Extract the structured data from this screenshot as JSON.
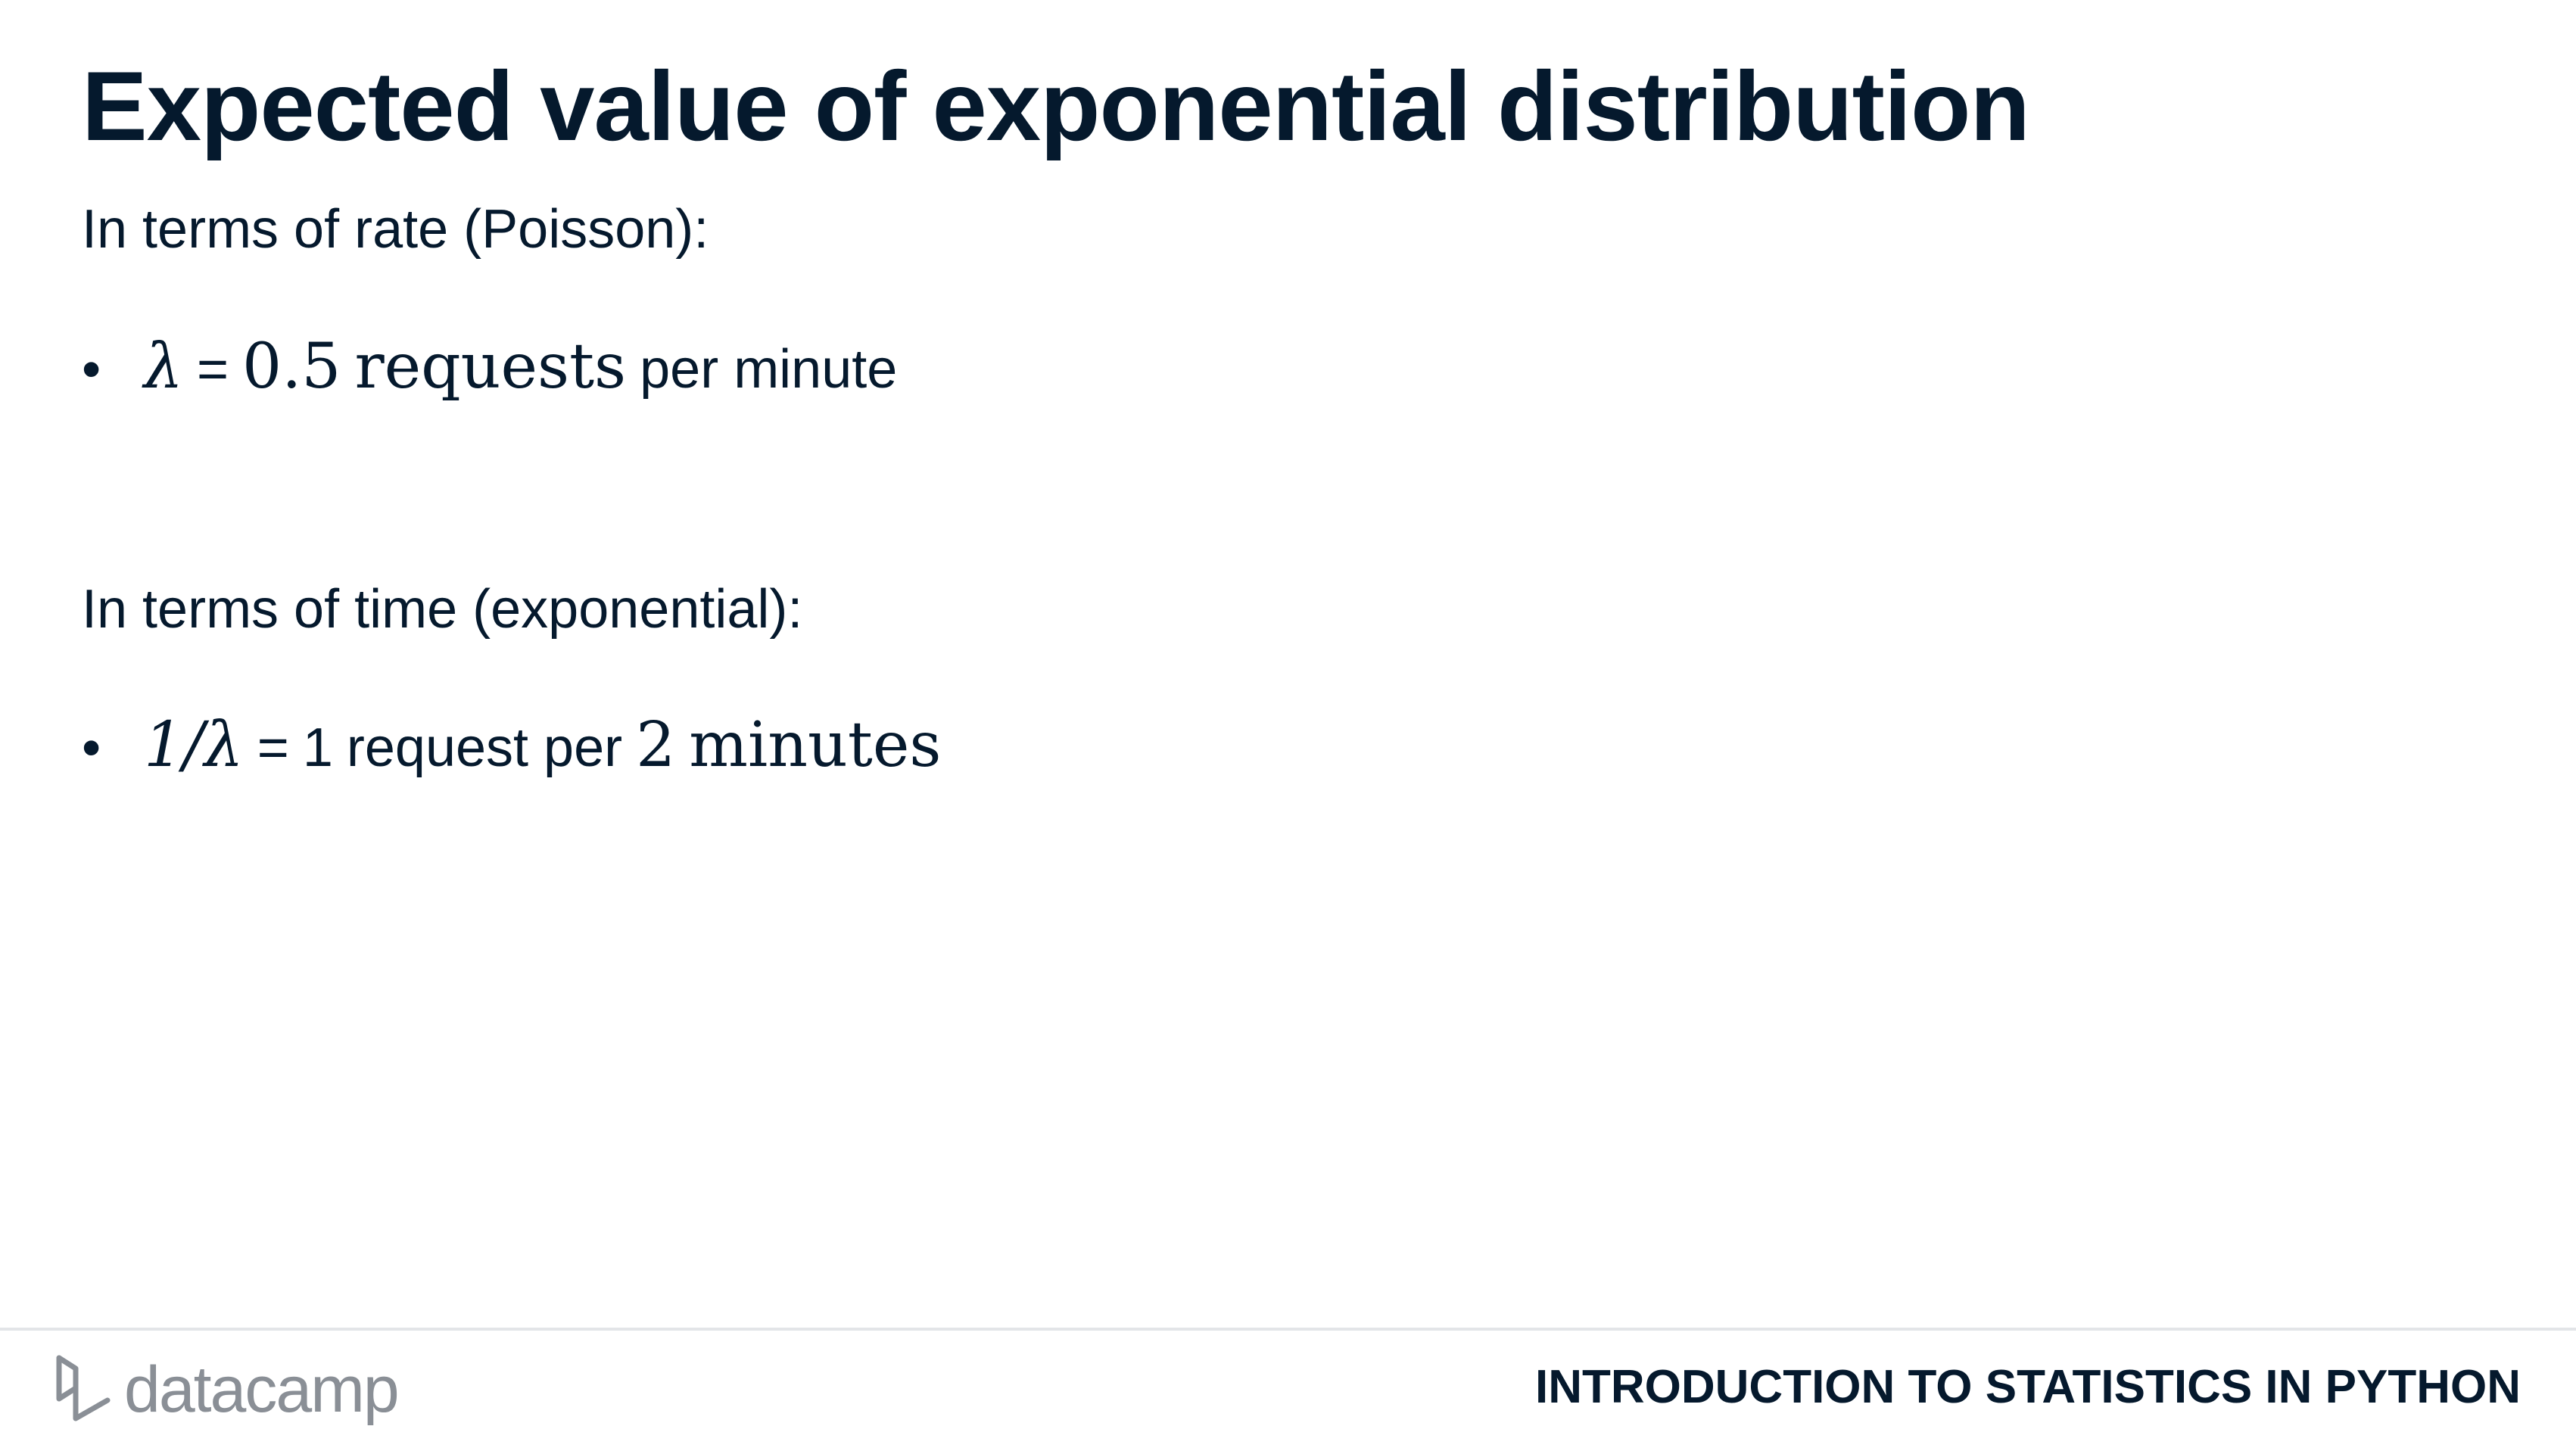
{
  "slide": {
    "title": "Expected value of exponential distribution",
    "rate_intro": "In terms of rate (Poisson):",
    "rate_bullet": {
      "bullet": "•",
      "lambda": "λ",
      "equals": "=",
      "value": "0.5",
      "unit": "requests",
      "suffix": "per minute"
    },
    "time_intro": "In terms of time (exponential):",
    "time_bullet": {
      "bullet": "•",
      "expr": "1/λ",
      "equals": "=",
      "value": "1",
      "mid": "request per",
      "num": "2",
      "unit": "minutes"
    }
  },
  "footer": {
    "logo_text": "datacamp",
    "course_name": "INTRODUCTION TO STATISTICS IN PYTHON",
    "rule_color": "#e3e5e8",
    "logo_color": "#8a8f96",
    "text_color": "#05192d"
  }
}
